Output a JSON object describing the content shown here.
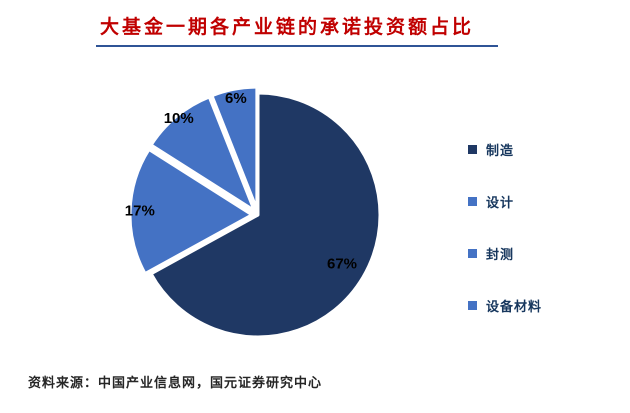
{
  "title": "大基金一期各产业链的承诺投资额占比",
  "source_note": "资料来源：中国产业信息网，国元证券研究中心",
  "chart_data": {
    "type": "pie",
    "title": "大基金一期各产业链的承诺投资额占比",
    "categories": [
      "制造",
      "设计",
      "封测",
      "设备材料"
    ],
    "values": [
      67,
      17,
      10,
      6
    ],
    "labels": [
      "67%",
      "17%",
      "10%",
      "6%"
    ],
    "unit": "%",
    "colors": [
      "#1F3864",
      "#4472C4",
      "#4472C4",
      "#4472C4"
    ],
    "start_angle_deg": 0,
    "direction": "clockwise",
    "exploded": [
      false,
      true,
      true,
      true
    ],
    "legend_position": "right"
  },
  "legend": {
    "items": [
      {
        "label": "制造",
        "color": "#1F3864"
      },
      {
        "label": "设计",
        "color": "#4472C4"
      },
      {
        "label": "封测",
        "color": "#4472C4"
      },
      {
        "label": "设备材料",
        "color": "#4472C4"
      }
    ]
  },
  "colors": {
    "background": "#FFFFFF",
    "title_text": "#C00000",
    "title_rule": "#2F5496",
    "legend_text": "#17375E",
    "slice_label": "#000000",
    "source_text": "#262626"
  }
}
